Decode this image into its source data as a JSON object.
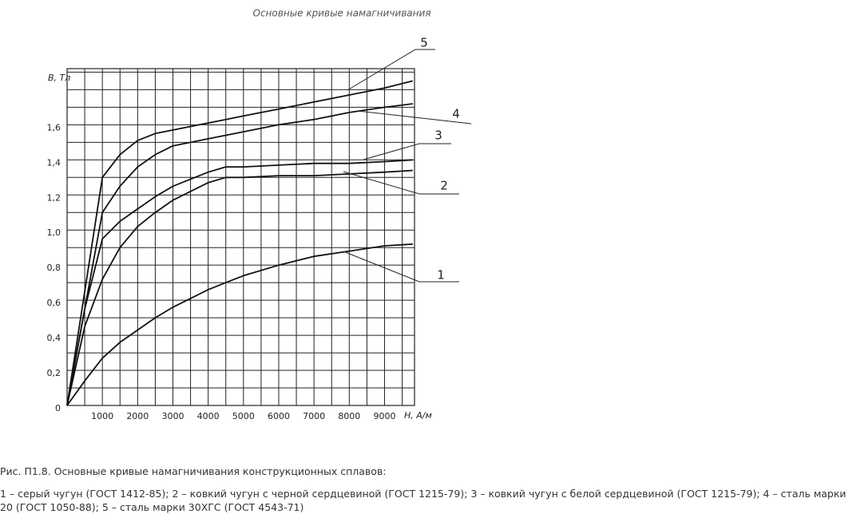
{
  "chart_data": {
    "type": "line",
    "title": "Основные кривые намагничивания",
    "x_label": "H, А/м",
    "y_label": "B, Тл",
    "x": [
      0,
      500,
      1000,
      1500,
      2000,
      2500,
      3000,
      4000,
      4500,
      5000,
      6000,
      7000,
      8000,
      9000,
      9800
    ],
    "series": [
      {
        "name": "1",
        "color": "#111111",
        "values": [
          0,
          0.14,
          0.27,
          0.36,
          0.43,
          0.5,
          0.56,
          0.66,
          0.7,
          0.74,
          0.8,
          0.85,
          0.88,
          0.91,
          0.92
        ]
      },
      {
        "name": "2",
        "color": "#111111",
        "values": [
          0,
          0.45,
          0.72,
          0.9,
          1.02,
          1.1,
          1.17,
          1.27,
          1.3,
          1.3,
          1.31,
          1.31,
          1.32,
          1.33,
          1.34
        ]
      },
      {
        "name": "3",
        "color": "#111111",
        "values": [
          0,
          0.55,
          0.95,
          1.05,
          1.12,
          1.19,
          1.25,
          1.33,
          1.36,
          1.36,
          1.37,
          1.38,
          1.38,
          1.39,
          1.4
        ]
      },
      {
        "name": "4",
        "color": "#111111",
        "values": [
          0,
          0.55,
          1.1,
          1.25,
          1.36,
          1.43,
          1.48,
          1.52,
          1.54,
          1.56,
          1.6,
          1.63,
          1.67,
          1.7,
          1.72
        ]
      },
      {
        "name": "5",
        "color": "#111111",
        "values": [
          0,
          0.65,
          1.3,
          1.43,
          1.51,
          1.55,
          1.57,
          1.61,
          1.63,
          1.65,
          1.69,
          1.73,
          1.77,
          1.81,
          1.85
        ]
      }
    ],
    "xlim": [
      0,
      9850
    ],
    "ylim": [
      0,
      1.92
    ],
    "xticks": [
      1000,
      2000,
      3000,
      4000,
      5000,
      6000,
      7000,
      8000,
      9000
    ],
    "yticks": [
      0,
      {
        "value": 0.2,
        "label": "0,2"
      },
      {
        "value": 0.4,
        "label": "0,4"
      },
      {
        "value": 0.6,
        "label": "0,6"
      },
      {
        "value": 0.8,
        "label": "0,8"
      },
      {
        "value": 1.0,
        "label": "1,0"
      },
      {
        "value": 1.2,
        "label": "1,2"
      },
      {
        "value": 1.4,
        "label": "1,4"
      },
      {
        "value": 1.6,
        "label": "1,6"
      }
    ],
    "xgrid": [
      500,
      1000,
      1500,
      2000,
      2500,
      3000,
      3500,
      4000,
      4500,
      5000,
      5500,
      6000,
      6500,
      7000,
      7500,
      8000,
      8500,
      9000,
      9500
    ],
    "ygrid": [
      0.1,
      0.2,
      0.3,
      0.4,
      0.5,
      0.6,
      0.7,
      0.8,
      0.9,
      1.0,
      1.1,
      1.2,
      1.3,
      1.4,
      1.5,
      1.6,
      1.7,
      1.8,
      1.9
    ],
    "grid": true
  },
  "caption": "Рис. П1.8. Основные кривые намагничивания конструкционных сплавов:",
  "description": "1 – серый чугун (ГОСТ 1412-85); 2 – ковкий чугун с черной сердцевиной (ГОСТ 1215-79); 3 – ковкий чугун с белой сердцевиной (ГОСТ 1215-79); 4 – сталь марки 20 (ГОСТ 1050-88); 5 – сталь марки 30ХГС (ГОСТ 4543-71)"
}
